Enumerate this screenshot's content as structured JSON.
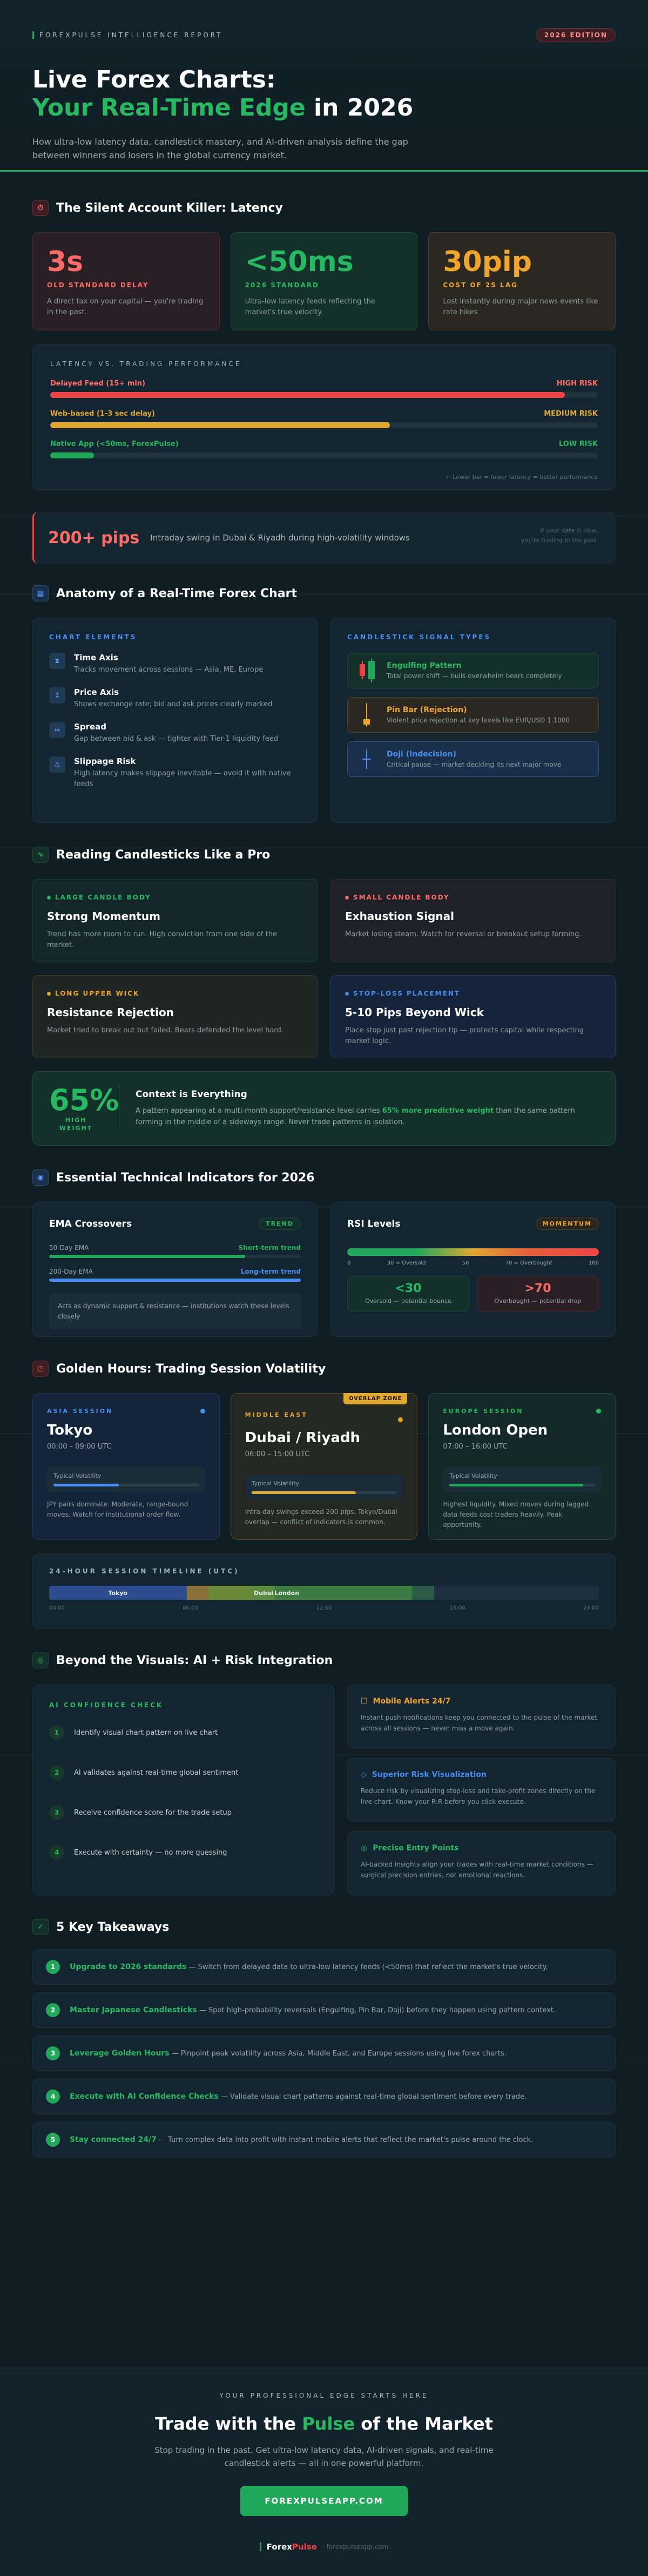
{
  "hero": {
    "eyebrow": "FOREXPULSE INTELLIGENCE REPORT",
    "edition": "2026 EDITION",
    "title_line1": "Live Forex Charts:",
    "title_green": "Your Real-Time Edge",
    "title_rest": " in 2026",
    "subtitle": "How ultra-low latency data, candlestick mastery, and AI-driven analysis define the gap between winners and losers in the global currency market."
  },
  "latency": {
    "title": "The Silent Account Killer: Latency",
    "stats": [
      {
        "num": "3s",
        "label": "OLD STANDARD DELAY",
        "desc": "A direct tax on your capital — you're trading in the past.",
        "color": "#ff6b67"
      },
      {
        "num": "<50ms",
        "label": "2026 STANDARD",
        "desc": "Ultra-low latency feeds reflecting the market's true velocity.",
        "color": "#27b862"
      },
      {
        "num": "30pip",
        "label": "COST OF 2S LAG",
        "desc": "Lost instantly during major news events like rate hikes",
        "color": "#f0a429"
      }
    ],
    "perf_title": "LATENCY VS. TRADING PERFORMANCE",
    "rows": [
      {
        "name": "Delayed Feed (15+ min)",
        "risk": "HIGH RISK",
        "pct": 94,
        "color": "#ef4444"
      },
      {
        "name": "Web-based (1-3 sec delay)",
        "risk": "MEDIUM RISK",
        "pct": 62,
        "color": "#e0a82e"
      },
      {
        "name": "Native App (<50ms, ForexPulse)",
        "risk": "LOW RISK",
        "pct": 8,
        "color": "#22a85a"
      }
    ],
    "perf_foot": "← Lower bar = lower latency = better performance"
  },
  "pips": {
    "big": "200+ pips",
    "text": "Intraday swing in Dubai & Riyadh during high-volatility windows",
    "side1": "If your data is slow,",
    "side2": "you're trading in the past."
  },
  "anatomy": {
    "title": "Anatomy of a Real-Time Forex Chart",
    "left_head": "CHART ELEMENTS",
    "elements": [
      {
        "icon": "⧗",
        "title": "Time Axis",
        "desc": "Tracks movement across sessions — Asia, ME, Europe"
      },
      {
        "icon": "↕",
        "title": "Price Axis",
        "desc": "Shows exchange rate; bid and ask prices clearly marked"
      },
      {
        "icon": "⇔",
        "title": "Spread",
        "desc": "Gap between bid & ask — tighter with Tier-1 liquidity feed"
      },
      {
        "icon": "⚠",
        "title": "Slippage Risk",
        "desc": "High latency makes slippage inevitable — avoid it with native feeds"
      }
    ],
    "right_head": "CANDLESTICK SIGNAL TYPES",
    "signals": [
      {
        "title": "Engulfing Pattern",
        "desc": "Total power shift — bulls overwhelm bears completely",
        "color": "#27b862"
      },
      {
        "title": "Pin Bar (Rejection)",
        "desc": "Violent price rejection at key levels like EUR/USD 1.1000",
        "color": "#f0a429"
      },
      {
        "title": "Doji (Indecision)",
        "desc": "Critical pause — market deciding its next major move",
        "color": "#4a8df0"
      }
    ]
  },
  "candles": {
    "title": "Reading Candlesticks Like a Pro",
    "cards": [
      {
        "tag": "LARGE CANDLE BODY",
        "head": "Strong Momentum",
        "desc": "Trend has more room to run. High conviction from one side of the market.",
        "color": "#27b862"
      },
      {
        "tag": "SMALL CANDLE BODY",
        "head": "Exhaustion Signal",
        "desc": "Market losing steam. Watch for reversal or breakout setup forming.",
        "color": "#ff6b67"
      },
      {
        "tag": "LONG UPPER WICK",
        "head": "Resistance Rejection",
        "desc": "Market tried to break out but failed. Bears defended the level hard.",
        "color": "#f0a429"
      },
      {
        "tag": "STOP-LOSS PLACEMENT",
        "head": "5-10 Pips Beyond Wick",
        "desc": "Place stop just past rejection tip — protects capital while respecting market logic.",
        "color": "#4a8df0"
      }
    ],
    "ctx_num": "65%",
    "ctx_l1": "HIGH",
    "ctx_l2": "WEIGHT",
    "ctx_head": "Context is Everything",
    "ctx_d1": "A pattern appearing at a multi-month support/resistance level carries ",
    "ctx_bold": "65% more predictive weight",
    "ctx_d2": " than the same pattern forming in the middle of a sideways range. Never trade patterns in isolation."
  },
  "indicators": {
    "title": "Essential Technical Indicators for 2026",
    "ema_title": "EMA Crossovers",
    "ema_pill": "TREND",
    "ema_rows": [
      {
        "name": "50-Day EMA",
        "label": "Short-term trend",
        "pct": 78,
        "color": "#22a85a"
      },
      {
        "name": "200-Day EMA",
        "label": "Long-term trend",
        "pct": 100,
        "color": "#4a8df0"
      }
    ],
    "ema_note": "Acts as dynamic support & resistance — institutions watch these levels closely",
    "rsi_title": "RSI Levels",
    "rsi_pill": "MOMENTUM",
    "rsi_ticks": [
      "0",
      "30 = Oversold",
      "50",
      "70 = Overbought",
      "100"
    ],
    "zones": [
      {
        "num": "<30",
        "desc": "Oversold — potential bounce",
        "color": "#27b862"
      },
      {
        "num": ">70",
        "desc": "Overbought — potential drop",
        "color": "#ff6b67"
      }
    ]
  },
  "sessions": {
    "title": "Golden Hours: Trading Session Volatility",
    "overlap": "OVERLAP ZONE",
    "cards": [
      {
        "tag": "ASIA SESSION",
        "city": "Tokyo",
        "time": "00:00 – 09:00 UTC",
        "vol_label": "Typical Volatility",
        "vol": 45,
        "color": "#4a8df0",
        "desc": "JPY pairs dominate. Moderate, range-bound moves. Watch for institutional order flow."
      },
      {
        "tag": "MIDDLE EAST",
        "city": "Dubai / Riyadh",
        "time": "06:00 – 15:00 UTC",
        "vol_label": "Typical Volatility",
        "vol": 72,
        "color": "#e0a82e",
        "desc": "Intra-day swings exceed 200 pips. Tokyo/Dubai overlap — conflict of indicators is common."
      },
      {
        "tag": "EUROPE SESSION",
        "city": "London Open",
        "time": "07:00 – 16:00 UTC",
        "vol_label": "Typical Volatility",
        "vol": 92,
        "color": "#22a85a",
        "desc": "Highest liquidity. Mixed moves during lagged data feeds cost traders heavily. Peak opportunity."
      }
    ],
    "timeline_title": "24-HOUR SESSION TIMELINE (UTC)",
    "timeline_labels": [
      "Tokyo",
      "Dubai",
      "London"
    ],
    "timeline_ticks": [
      "00:00",
      "06:00",
      "12:00",
      "18:00",
      "24:00"
    ]
  },
  "ai": {
    "title": "Beyond the Visuals: AI + Risk Integration",
    "left_head": "AI CONFIDENCE CHECK",
    "steps": [
      "Identify visual chart pattern on live chart",
      "AI validates against real-time global sentiment",
      "Receive confidence score for the trade setup",
      "Execute with certainty — no more guessing"
    ],
    "features": [
      {
        "icon": "☐",
        "title": "Mobile Alerts 24/7",
        "desc": "Instant push notifications keep you connected to the pulse of the market across all sessions — never miss a move again.",
        "color": "#f0a429"
      },
      {
        "icon": "◇",
        "title": "Superior Risk Visualization",
        "desc": "Reduce risk by visualizing stop-loss and take-profit zones directly on the live chart. Know your R:R before you click execute.",
        "color": "#4a8df0"
      },
      {
        "icon": "◎",
        "title": "Precise Entry Points",
        "desc": "AI-backed insights align your trades with real-time market conditions — surgical precision entries, not emotional reactions.",
        "color": "#27b862"
      }
    ]
  },
  "takeaways": {
    "title": "5 Key Takeaways",
    "items": [
      {
        "n": "1",
        "bold": "Upgrade to 2026 standards",
        "text": " — Switch from delayed data to ultra-low latency feeds (<50ms) that reflect the market's true velocity."
      },
      {
        "n": "2",
        "bold": "Master Japanese Candlesticks",
        "text": " — Spot high-probability reversals (Engulfing, Pin Bar, Doji) before they happen using pattern context."
      },
      {
        "n": "3",
        "bold": "Leverage Golden Hours",
        "text": " — Pinpoint peak volatility across Asia, Middle East, and Europe sessions using live forex charts."
      },
      {
        "n": "4",
        "bold": "Execute with AI Confidence Checks",
        "text": " — Validate visual chart patterns against real-time global sentiment before every trade."
      },
      {
        "n": "5",
        "bold": "Stay connected 24/7",
        "text": " — Turn complex data into profit with instant mobile alerts that reflect the market's pulse around the clock."
      }
    ]
  },
  "cta": {
    "eyebrow": "YOUR PROFESSIONAL EDGE STARTS HERE",
    "h1": "Trade with the ",
    "h_green": "Pulse",
    "h2": " of the Market",
    "desc": "Stop trading in the past. Get ultra-low latency data, AI-driven signals, and real-time candlestick alerts — all in one powerful platform.",
    "button": "FOREXPULSEAPP.COM",
    "brand1": "Forex",
    "brand2": "Pulse",
    "url": "· forexpulseapp.com"
  }
}
